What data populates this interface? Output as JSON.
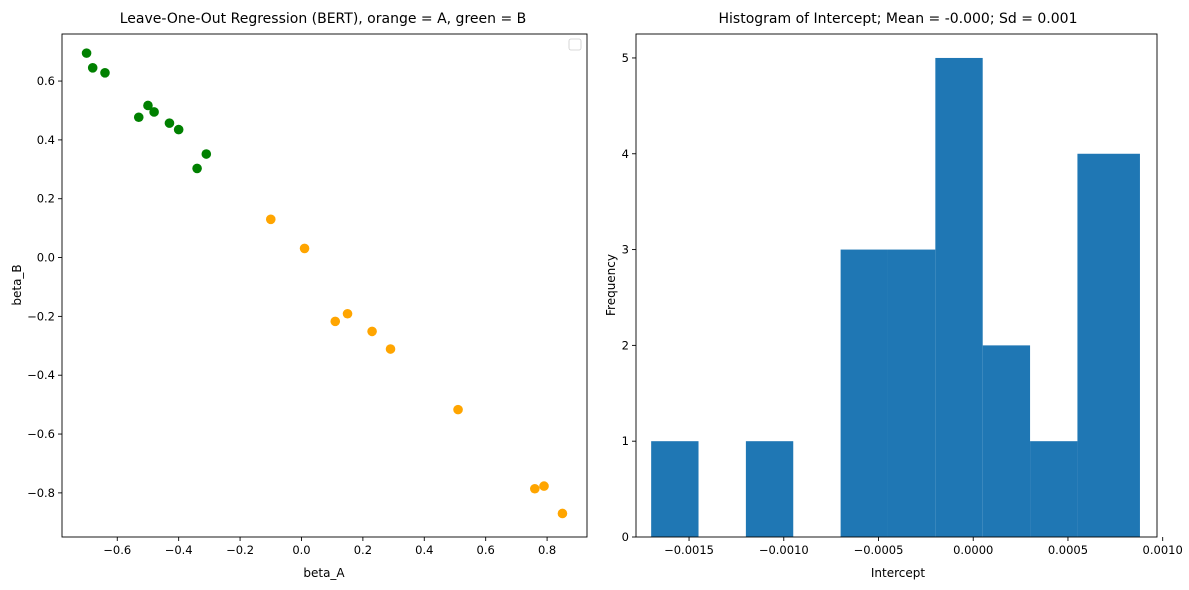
{
  "chart_data": [
    {
      "type": "scatter",
      "title": "Leave-One-Out Regression (BERT), orange = A, green = B",
      "xlabel": "beta_A",
      "ylabel": "beta_B",
      "xlim": [
        -0.78,
        0.93
      ],
      "ylim": [
        -0.95,
        0.76
      ],
      "xticks": [
        -0.6,
        -0.4,
        -0.2,
        0.0,
        0.2,
        0.4,
        0.6,
        0.8
      ],
      "xtick_labels": [
        "−0.6",
        "−0.4",
        "−0.2",
        "0.0",
        "0.2",
        "0.4",
        "0.6",
        "0.8"
      ],
      "yticks": [
        -0.8,
        -0.6,
        -0.4,
        -0.2,
        0.0,
        0.2,
        0.4,
        0.6
      ],
      "ytick_labels": [
        "−0.8",
        "−0.6",
        "−0.4",
        "−0.2",
        "0.0",
        "0.2",
        "0.4",
        "0.6"
      ],
      "legend": "top-right (empty)",
      "grid": false,
      "series": [
        {
          "color": "#008000",
          "x": [
            -0.7,
            -0.68,
            -0.64,
            -0.53,
            -0.5,
            -0.48,
            -0.43,
            -0.4,
            -0.34,
            -0.31
          ],
          "y": [
            0.695,
            0.645,
            0.628,
            0.477,
            0.517,
            0.495,
            0.457,
            0.435,
            0.303,
            0.352
          ]
        },
        {
          "color": "#FFA500",
          "x": [
            -0.1,
            0.01,
            0.11,
            0.15,
            0.23,
            0.29,
            0.51,
            0.76,
            0.79,
            0.85
          ],
          "y": [
            0.13,
            0.031,
            -0.217,
            -0.191,
            -0.251,
            -0.311,
            -0.517,
            -0.786,
            -0.777,
            -0.87
          ]
        }
      ]
    },
    {
      "type": "bar",
      "title": "Histogram of Intercept; Mean = -0.000; Sd = 0.001",
      "xlabel": "Intercept",
      "ylabel": "Frequency",
      "xlim": [
        -0.00178,
        0.00097
      ],
      "ylim": [
        0,
        5.25
      ],
      "xticks": [
        -0.0015,
        -0.001,
        -0.0005,
        0.0,
        0.0005,
        0.001
      ],
      "xtick_labels": [
        "−0.0015",
        "−0.0010",
        "−0.0005",
        "0.0000",
        "0.0005",
        "0.0010"
      ],
      "yticks": [
        0,
        1,
        2,
        3,
        4,
        5
      ],
      "ytick_labels": [
        "0",
        "1",
        "2",
        "3",
        "4",
        "5"
      ],
      "color": "#1f77b4",
      "bin_edges": [
        -0.0017,
        -0.00145,
        -0.0012,
        -0.00095,
        -0.0007,
        -0.00045,
        -0.0002,
        5e-05,
        0.0003,
        0.00055,
        0.00088
      ],
      "values": [
        1,
        0,
        1,
        0,
        3,
        3,
        5,
        2,
        1,
        4
      ]
    }
  ]
}
